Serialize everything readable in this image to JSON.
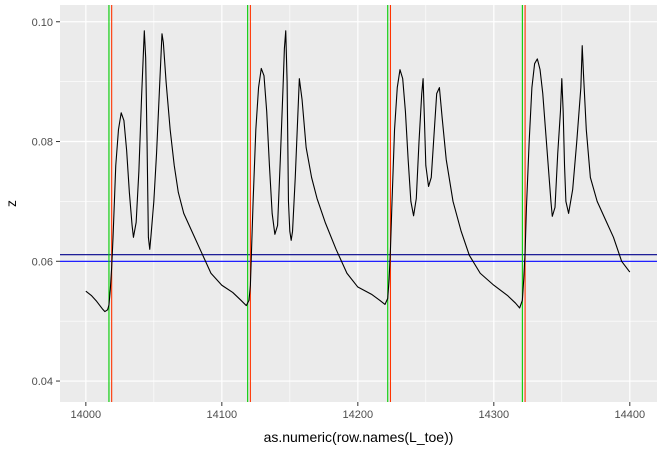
{
  "chart_data": {
    "type": "line",
    "xlabel": "as.numeric(row.names(L_toe))",
    "ylabel": "z",
    "xlim": [
      13981,
      14420
    ],
    "ylim": [
      0.0365,
      0.1028
    ],
    "x_ticks": [
      14000,
      14100,
      14200,
      14300,
      14400
    ],
    "x_tick_labels": [
      "14000",
      "14100",
      "14200",
      "14300",
      "14400"
    ],
    "y_ticks": [
      0.04,
      0.06,
      0.08,
      0.1
    ],
    "y_tick_labels": [
      "0.04",
      "0.06",
      "0.08",
      "0.10"
    ],
    "grid": true,
    "panel_background": "#ebebeb",
    "grid_color": "#ffffff",
    "line_color": "#000000",
    "series": [
      {
        "values": [
          [
            14000,
            0.055
          ],
          [
            14004,
            0.0543
          ],
          [
            14008,
            0.0533
          ],
          [
            14012,
            0.0521
          ],
          [
            14014,
            0.0516
          ],
          [
            14016,
            0.0519
          ],
          [
            14017,
            0.0527
          ],
          [
            14018,
            0.0553
          ],
          [
            14019,
            0.059
          ],
          [
            14020,
            0.064
          ],
          [
            14021,
            0.07
          ],
          [
            14022,
            0.076
          ],
          [
            14024,
            0.082
          ],
          [
            14026,
            0.0848
          ],
          [
            14028,
            0.0835
          ],
          [
            14030,
            0.0785
          ],
          [
            14032,
            0.0715
          ],
          [
            14034,
            0.066
          ],
          [
            14035,
            0.064
          ],
          [
            14037,
            0.0665
          ],
          [
            14039,
            0.075
          ],
          [
            14041,
            0.0875
          ],
          [
            14043,
            0.0985
          ],
          [
            14044,
            0.094
          ],
          [
            14045,
            0.08
          ],
          [
            14046,
            0.064
          ],
          [
            14047,
            0.062
          ],
          [
            14048,
            0.0645
          ],
          [
            14050,
            0.07
          ],
          [
            14052,
            0.078
          ],
          [
            14054,
            0.088
          ],
          [
            14056,
            0.098
          ],
          [
            14057,
            0.0965
          ],
          [
            14059,
            0.09
          ],
          [
            14062,
            0.082
          ],
          [
            14065,
            0.076
          ],
          [
            14068,
            0.0715
          ],
          [
            14072,
            0.068
          ],
          [
            14078,
            0.065
          ],
          [
            14085,
            0.0615
          ],
          [
            14092,
            0.058
          ],
          [
            14100,
            0.056
          ],
          [
            14108,
            0.0548
          ],
          [
            14114,
            0.0535
          ],
          [
            14118,
            0.0526
          ],
          [
            14120,
            0.0535
          ],
          [
            14121,
            0.056
          ],
          [
            14122,
            0.063
          ],
          [
            14123,
            0.07
          ],
          [
            14125,
            0.082
          ],
          [
            14127,
            0.089
          ],
          [
            14129,
            0.0922
          ],
          [
            14131,
            0.091
          ],
          [
            14133,
            0.085
          ],
          [
            14135,
            0.076
          ],
          [
            14137,
            0.068
          ],
          [
            14139,
            0.0645
          ],
          [
            14141,
            0.066
          ],
          [
            14143,
            0.077
          ],
          [
            14145,
            0.089
          ],
          [
            14146,
            0.0955
          ],
          [
            14147,
            0.0985
          ],
          [
            14148,
            0.09
          ],
          [
            14149,
            0.07
          ],
          [
            14150,
            0.065
          ],
          [
            14151,
            0.0635
          ],
          [
            14152,
            0.065
          ],
          [
            14154,
            0.074
          ],
          [
            14156,
            0.085
          ],
          [
            14157,
            0.0905
          ],
          [
            14159,
            0.087
          ],
          [
            14162,
            0.079
          ],
          [
            14166,
            0.074
          ],
          [
            14170,
            0.0705
          ],
          [
            14176,
            0.0665
          ],
          [
            14184,
            0.062
          ],
          [
            14192,
            0.058
          ],
          [
            14200,
            0.0557
          ],
          [
            14210,
            0.0545
          ],
          [
            14216,
            0.0535
          ],
          [
            14220,
            0.0528
          ],
          [
            14222,
            0.0538
          ],
          [
            14223,
            0.057
          ],
          [
            14224,
            0.062
          ],
          [
            14225,
            0.069
          ],
          [
            14227,
            0.082
          ],
          [
            14229,
            0.089
          ],
          [
            14231,
            0.092
          ],
          [
            14233,
            0.0905
          ],
          [
            14235,
            0.085
          ],
          [
            14237,
            0.077
          ],
          [
            14239,
            0.07
          ],
          [
            14241,
            0.0676
          ],
          [
            14243,
            0.0705
          ],
          [
            14245,
            0.08
          ],
          [
            14247,
            0.088
          ],
          [
            14248,
            0.0905
          ],
          [
            14249,
            0.0835
          ],
          [
            14250,
            0.076
          ],
          [
            14252,
            0.0725
          ],
          [
            14254,
            0.074
          ],
          [
            14256,
            0.081
          ],
          [
            14258,
            0.088
          ],
          [
            14260,
            0.089
          ],
          [
            14262,
            0.084
          ],
          [
            14265,
            0.077
          ],
          [
            14270,
            0.07
          ],
          [
            14276,
            0.065
          ],
          [
            14282,
            0.061
          ],
          [
            14290,
            0.058
          ],
          [
            14300,
            0.056
          ],
          [
            14310,
            0.0543
          ],
          [
            14316,
            0.053
          ],
          [
            14319,
            0.0522
          ],
          [
            14321,
            0.0535
          ],
          [
            14322,
            0.057
          ],
          [
            14323,
            0.0615
          ],
          [
            14324,
            0.069
          ],
          [
            14326,
            0.08
          ],
          [
            14328,
            0.089
          ],
          [
            14330,
            0.093
          ],
          [
            14332,
            0.0938
          ],
          [
            14334,
            0.092
          ],
          [
            14336,
            0.088
          ],
          [
            14338,
            0.082
          ],
          [
            14340,
            0.076
          ],
          [
            14342,
            0.07
          ],
          [
            14343,
            0.0675
          ],
          [
            14345,
            0.069
          ],
          [
            14347,
            0.078
          ],
          [
            14349,
            0.085
          ],
          [
            14350,
            0.0905
          ],
          [
            14351,
            0.085
          ],
          [
            14352,
            0.076
          ],
          [
            14353,
            0.07
          ],
          [
            14355,
            0.068
          ],
          [
            14358,
            0.072
          ],
          [
            14361,
            0.08
          ],
          [
            14364,
            0.089
          ],
          [
            14365,
            0.096
          ],
          [
            14366,
            0.091
          ],
          [
            14368,
            0.082
          ],
          [
            14371,
            0.074
          ],
          [
            14376,
            0.07
          ],
          [
            14382,
            0.067
          ],
          [
            14388,
            0.064
          ],
          [
            14394,
            0.06
          ],
          [
            14400,
            0.0582
          ]
        ]
      }
    ],
    "hlines": [
      {
        "y": 0.0611,
        "color": "#00008b"
      },
      {
        "y": 0.06,
        "color": "#0000ff"
      }
    ],
    "vlines": [
      {
        "x": 14017,
        "color": "#00cd00"
      },
      {
        "x": 14019,
        "color": "#ff3300"
      },
      {
        "x": 14119,
        "color": "#00cd00"
      },
      {
        "x": 14121,
        "color": "#ff3300"
      },
      {
        "x": 14222,
        "color": "#00cd00"
      },
      {
        "x": 14224,
        "color": "#ff3300"
      },
      {
        "x": 14321,
        "color": "#00cd00"
      },
      {
        "x": 14323,
        "color": "#ff3300"
      }
    ]
  }
}
